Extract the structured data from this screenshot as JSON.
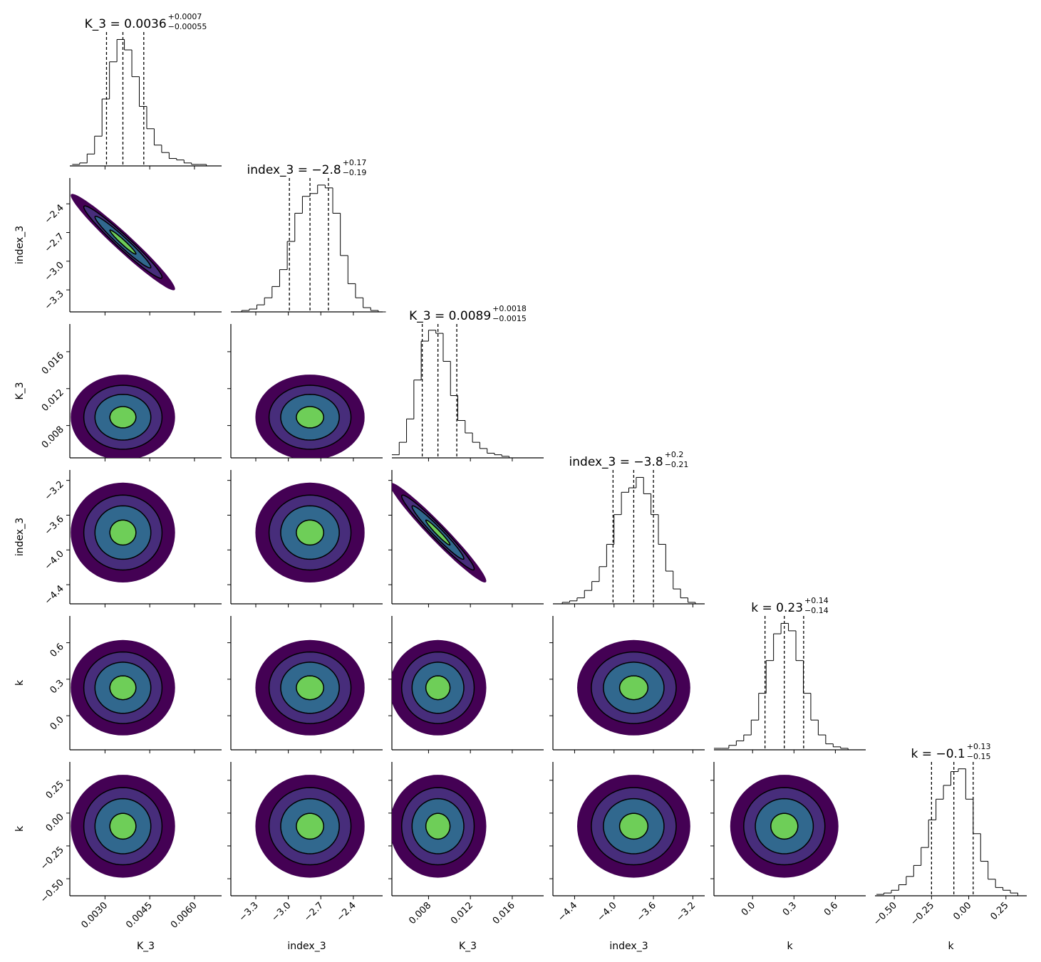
{
  "chart_data": {
    "type": "corner",
    "params": [
      {
        "name": "K_3",
        "title": "K_3 = 0.0036",
        "upper": "+0.0007",
        "lower": "−0.00055",
        "quantiles": [
          0.00305,
          0.0036,
          0.0043
        ],
        "lim": [
          0.00182,
          0.00691
        ],
        "ticks": [
          {
            "value": 0.003,
            "label": "0.0030"
          },
          {
            "value": 0.0045,
            "label": "0.0045"
          },
          {
            "value": 0.006,
            "label": "0.0060"
          }
        ],
        "bins": [
          0.0019,
          0.00215,
          0.0024,
          0.00265,
          0.0029,
          0.00315,
          0.0034,
          0.00365,
          0.0039,
          0.00415,
          0.0044,
          0.00465,
          0.0049,
          0.00515,
          0.0054,
          0.00565,
          0.0059,
          0.00615,
          0.0064,
          0.00665,
          0.0069
        ],
        "counts": [
          1,
          2,
          8,
          20,
          45,
          70,
          85,
          78,
          60,
          40,
          25,
          14,
          9,
          5,
          4,
          2,
          1,
          1,
          0,
          0
        ],
        "hist_ylim": [
          0,
          90
        ]
      },
      {
        "name": "index_3",
        "title": "index_3 = −2.8",
        "upper": "+0.17",
        "lower": "−0.19",
        "quantiles": [
          -2.99,
          -2.8,
          -2.63
        ],
        "lim": [
          -3.53,
          -2.13
        ],
        "ticks": [
          {
            "value": -3.3,
            "label": "−3.3"
          },
          {
            "value": -3.0,
            "label": "−3.0"
          },
          {
            "value": -2.7,
            "label": "−2.7"
          },
          {
            "value": -2.4,
            "label": "−2.4"
          }
        ],
        "bins": [
          -3.5,
          -3.43,
          -3.36,
          -3.29,
          -3.22,
          -3.15,
          -3.08,
          -3.01,
          -2.94,
          -2.87,
          -2.8,
          -2.73,
          -2.66,
          -2.59,
          -2.52,
          -2.45,
          -2.38,
          -2.31,
          -2.24,
          -2.17,
          -2.1
        ],
        "counts": [
          0,
          1,
          2,
          5,
          10,
          18,
          30,
          50,
          70,
          82,
          84,
          90,
          88,
          70,
          40,
          20,
          10,
          3,
          1,
          0
        ],
        "hist_ylim": [
          0,
          95
        ]
      },
      {
        "name": "K_3",
        "title": "K_3 = 0.0089",
        "upper": "+0.0018",
        "lower": "−0.0015",
        "quantiles": [
          0.0074,
          0.0089,
          0.0107
        ],
        "lim": [
          0.0045,
          0.019
        ],
        "ticks": [
          0.008,
          0.012,
          0.016
        ],
        "bins": [
          0.0045,
          0.0052,
          0.0059,
          0.0066,
          0.0073,
          0.008,
          0.0087,
          0.0094,
          0.0101,
          0.0108,
          0.0115,
          0.0122,
          0.0129,
          0.0136,
          0.0143,
          0.015,
          0.0157,
          0.0164,
          0.0171,
          0.0178,
          0.0185
        ],
        "counts": [
          2,
          10,
          25,
          50,
          75,
          82,
          80,
          62,
          40,
          24,
          16,
          10,
          6,
          3,
          2,
          1,
          0,
          0,
          0,
          0
        ],
        "hist_ylim": [
          0,
          86
        ]
      },
      {
        "name": "index_3",
        "title": "index_3 = −3.8",
        "upper": "+0.2",
        "lower": "−0.21",
        "quantiles": [
          -4.01,
          -3.8,
          -3.6
        ],
        "lim": [
          -4.62,
          -3.08
        ],
        "ticks": [
          {
            "value": -4.4,
            "label": "−4.4"
          },
          {
            "value": -4.0,
            "label": "−4.0"
          },
          {
            "value": -3.6,
            "label": "−3.6"
          },
          {
            "value": -3.2,
            "label": "−3.2"
          }
        ],
        "bins": [
          -4.6,
          -4.525,
          -4.45,
          -4.375,
          -4.3,
          -4.225,
          -4.15,
          -4.075,
          -4,
          -3.925,
          -3.85,
          -3.775,
          -3.7,
          -3.625,
          -3.55,
          -3.475,
          -3.4,
          -3.325,
          -3.25,
          -3.175,
          -3.1
        ],
        "counts": [
          0,
          1,
          2,
          4,
          9,
          15,
          25,
          40,
          60,
          75,
          78,
          85,
          74,
          60,
          40,
          22,
          10,
          4,
          1,
          0
        ],
        "hist_ylim": [
          0,
          90
        ]
      },
      {
        "name": "k",
        "title": "k = 0.23",
        "upper": "+0.14",
        "lower": "−0.14",
        "quantiles": [
          0.09,
          0.23,
          0.37
        ],
        "lim": [
          -0.28,
          0.82
        ],
        "ticks": [
          {
            "value": 0,
            "label": "0.0"
          },
          0.3,
          0.6
        ],
        "bins": [
          -0.28,
          -0.226,
          -0.172,
          -0.118,
          -0.064,
          -0.01,
          0.044,
          0.098,
          0.152,
          0.206,
          0.26,
          0.314,
          0.368,
          0.422,
          0.476,
          0.53,
          0.584,
          0.638,
          0.692,
          0.746,
          0.8
        ],
        "counts": [
          1,
          1,
          3,
          6,
          10,
          20,
          38,
          60,
          78,
          85,
          80,
          60,
          38,
          20,
          10,
          4,
          2,
          1,
          0,
          0
        ],
        "hist_ylim": [
          0,
          90
        ]
      },
      {
        "name": "k",
        "title": "k = −0.1",
        "upper": "+0.13",
        "lower": "−0.15",
        "quantiles": [
          -0.25,
          -0.1,
          0.03
        ],
        "lim": [
          -0.63,
          0.39
        ],
        "ticks": [
          {
            "value": -0.5,
            "label": "−0.50"
          },
          {
            "value": -0.25,
            "label": "−0.25"
          },
          {
            "value": 0,
            "label": "0.00"
          },
          0.25
        ],
        "bins": [
          -0.62,
          -0.57,
          -0.52,
          -0.47,
          -0.42,
          -0.37,
          -0.32,
          -0.27,
          -0.22,
          -0.17,
          -0.12,
          -0.07,
          -0.02,
          0.03,
          0.08,
          0.13,
          0.18,
          0.23,
          0.28,
          0.33,
          0.38
        ],
        "counts": [
          1,
          2,
          4,
          8,
          14,
          22,
          35,
          55,
          70,
          80,
          90,
          92,
          70,
          45,
          25,
          12,
          6,
          4,
          2,
          0
        ],
        "hist_ylim": [
          0,
          97
        ]
      }
    ],
    "pairs": [
      {
        "x": 0,
        "y": 1,
        "rho": -0.97
      },
      {
        "x": 0,
        "y": 2,
        "rho": 0
      },
      {
        "x": 0,
        "y": 3,
        "rho": 0
      },
      {
        "x": 0,
        "y": 4,
        "rho": 0
      },
      {
        "x": 0,
        "y": 5,
        "rho": 0
      },
      {
        "x": 1,
        "y": 2,
        "rho": 0
      },
      {
        "x": 1,
        "y": 3,
        "rho": 0
      },
      {
        "x": 1,
        "y": 4,
        "rho": 0
      },
      {
        "x": 1,
        "y": 5,
        "rho": 0
      },
      {
        "x": 2,
        "y": 3,
        "rho": -0.97
      },
      {
        "x": 2,
        "y": 4,
        "rho": 0
      },
      {
        "x": 2,
        "y": 5,
        "rho": 0
      },
      {
        "x": 3,
        "y": 4,
        "rho": 0
      },
      {
        "x": 3,
        "y": 5,
        "rho": 0
      },
      {
        "x": 4,
        "y": 5,
        "rho": 0
      }
    ],
    "contour_levels": [
      2.8,
      2.1,
      1.5,
      0.7
    ],
    "contour_colors": [
      "#440154",
      "#472d7b",
      "#31688e",
      "#6ece58"
    ],
    "hist_color": "#000000"
  }
}
